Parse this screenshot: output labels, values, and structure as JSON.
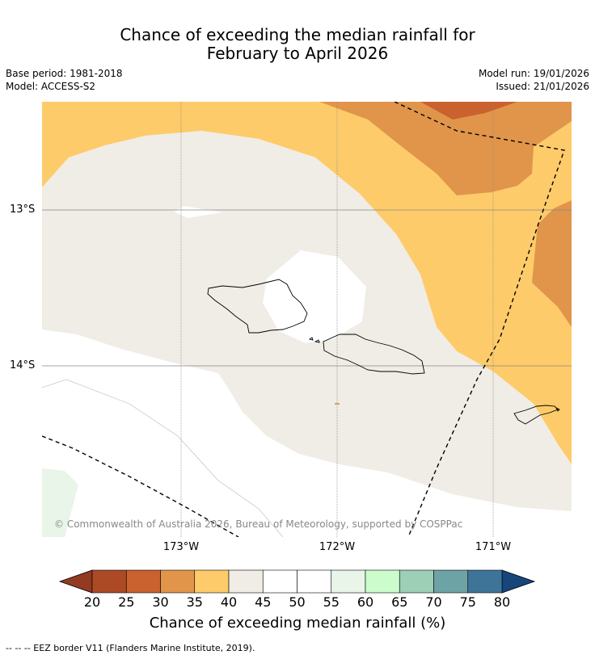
{
  "title": {
    "line1": "Chance of exceeding the median rainfall for",
    "line2": "February to April 2026"
  },
  "meta": {
    "base_period": "Base period: 1981-2018",
    "model": "Model: ACCESS-S2",
    "model_run": "Model run: 19/01/2026",
    "issued": "Issued: 21/01/2026"
  },
  "map": {
    "latitude_labels": [
      "13°S",
      "14°S"
    ],
    "longitude_labels": [
      "173°W",
      "172°W",
      "171°W"
    ],
    "copyright": "© Commonwealth of Australia 2026, Bureau of Meteorology, supported by COSPPac",
    "colors": {
      "c30_35": "#e0954a",
      "c25_30": "#c9622e",
      "c35_40": "#fecb6a",
      "c40_45": "#f0ece6",
      "c45_55": "#ffffff",
      "c55_60": "#e8f5e8",
      "land_outline": "#000000",
      "eez_line": "#000000"
    }
  },
  "colorbar": {
    "ticks": [
      "20",
      "25",
      "30",
      "35",
      "40",
      "45",
      "50",
      "55",
      "60",
      "65",
      "70",
      "75",
      "80"
    ],
    "bins": [
      {
        "range": "20-25",
        "color": "#ac4a26"
      },
      {
        "range": "25-30",
        "color": "#c9622e"
      },
      {
        "range": "30-35",
        "color": "#e0954a"
      },
      {
        "range": "35-40",
        "color": "#fecb6a"
      },
      {
        "range": "40-45",
        "color": "#f0ece6"
      },
      {
        "range": "45-50",
        "color": "#ffffff"
      },
      {
        "range": "50-55",
        "color": "#ffffff"
      },
      {
        "range": "55-60",
        "color": "#e8f5e8"
      },
      {
        "range": "60-65",
        "color": "#ccfccc"
      },
      {
        "range": "65-70",
        "color": "#9dcfb6"
      },
      {
        "range": "70-75",
        "color": "#6ea3a5"
      },
      {
        "range": "75-80",
        "color": "#3f7499"
      }
    ],
    "under_color": "#933a22",
    "over_color": "#16467a",
    "label": "Chance of exceeding median rainfall (%)"
  },
  "footnote": "-- -- -- EEZ border V11 (Flanders Marine Institute, 2019)."
}
